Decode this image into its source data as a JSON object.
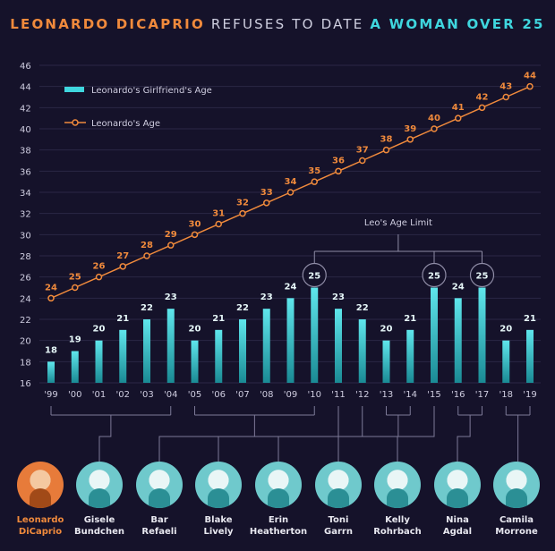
{
  "title": {
    "part1": "LEONARDO DICAPRIO",
    "part2": " REFUSES TO DATE ",
    "part3": "A WOMAN OVER 25"
  },
  "colors": {
    "leo": "#f08a3c",
    "girlfriend": "#3fd6de",
    "background": "#15122a"
  },
  "chart_data": {
    "type": "bar",
    "categories": [
      "'99",
      "'00",
      "'01",
      "'02",
      "'03",
      "'04",
      "'05",
      "'06",
      "'07",
      "'08",
      "'09",
      "'10",
      "'11",
      "'12",
      "'13",
      "'14",
      "'15",
      "'16",
      "'17",
      "'18",
      "'19"
    ],
    "series": [
      {
        "name": "Leonardo's Girlfriend's Age",
        "type": "bar",
        "values": [
          18,
          19,
          20,
          21,
          22,
          23,
          20,
          21,
          22,
          23,
          24,
          25,
          23,
          22,
          20,
          21,
          25,
          24,
          25,
          20,
          21
        ]
      },
      {
        "name": "Leonardo's Age",
        "type": "line",
        "values": [
          24,
          25,
          26,
          27,
          28,
          29,
          30,
          31,
          32,
          33,
          34,
          35,
          36,
          37,
          38,
          39,
          40,
          41,
          42,
          43,
          44
        ]
      }
    ],
    "ylim": [
      16,
      46
    ],
    "yticks": [
      16,
      18,
      20,
      22,
      24,
      26,
      28,
      30,
      32,
      34,
      36,
      38,
      40,
      42,
      44,
      46
    ],
    "grid": true,
    "legend": "top-left",
    "annotation": {
      "text": "Leo's Age Limit",
      "value": 25,
      "highlight": [
        "'10",
        "'15",
        "'17"
      ]
    }
  },
  "people": [
    {
      "name": "Leonardo DiCaprio",
      "line1": "Leonardo",
      "line2": "DiCaprio",
      "years": []
    },
    {
      "name": "Gisele Bundchen",
      "line1": "Gisele",
      "line2": "Bundchen",
      "years": [
        "'99",
        "'04"
      ]
    },
    {
      "name": "Bar Refaeli",
      "line1": "Bar",
      "line2": "Refaeli",
      "years": [
        "'05",
        "'10"
      ]
    },
    {
      "name": "Blake Lively",
      "line1": "Blake",
      "line2": "Lively",
      "years": [
        "'11"
      ]
    },
    {
      "name": "Erin Heatherton",
      "line1": "Erin",
      "line2": "Heatherton",
      "years": [
        "'12"
      ]
    },
    {
      "name": "Toni Garrn",
      "line1": "Toni",
      "line2": "Garrn",
      "years": [
        "'13",
        "'14"
      ]
    },
    {
      "name": "Kelly Rohrbach",
      "line1": "Kelly",
      "line2": "Rohrbach",
      "years": [
        "'15"
      ]
    },
    {
      "name": "Nina Agdal",
      "line1": "Nina",
      "line2": "Agdal",
      "years": [
        "'16",
        "'17"
      ]
    },
    {
      "name": "Camila Morrone",
      "line1": "Camila",
      "line2": "Morrone",
      "years": [
        "'18",
        "'19"
      ]
    }
  ]
}
